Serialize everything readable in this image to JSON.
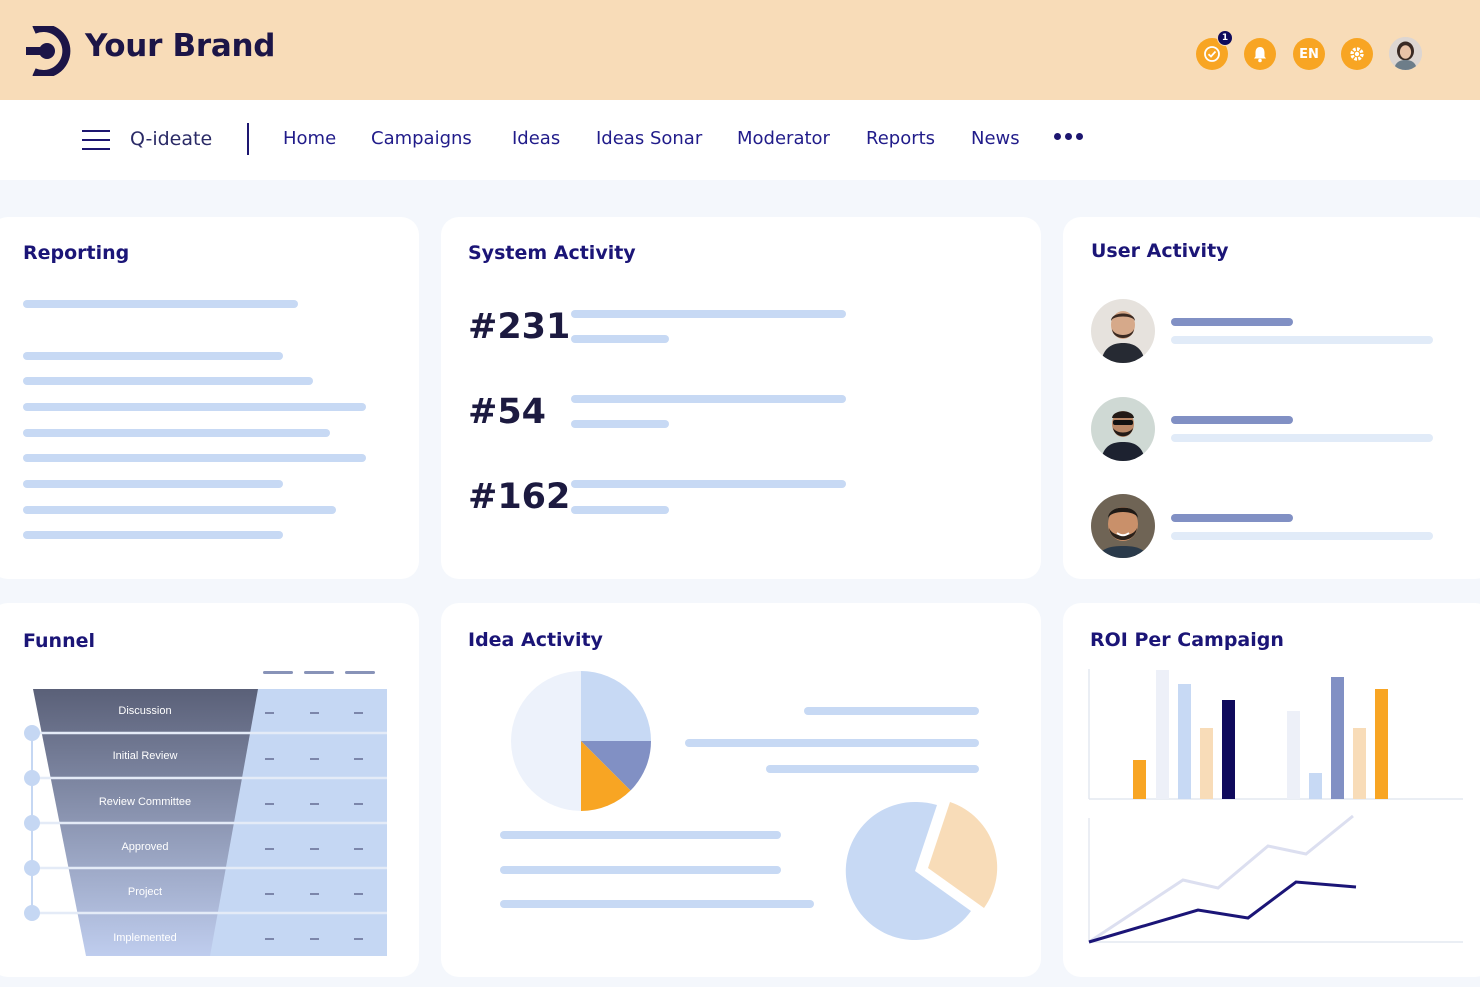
{
  "header": {
    "brand": "Your Brand",
    "icons": [
      {
        "name": "check-circle-icon",
        "badge": "1"
      },
      {
        "name": "bell-icon"
      },
      {
        "name": "language-icon",
        "label": "EN"
      },
      {
        "name": "gear-icon"
      }
    ],
    "accent_color": "#f8a523"
  },
  "nav": {
    "app_name": "Q-ideate",
    "items": [
      "Home",
      "Campaigns",
      "Ideas",
      "Ideas Sonar",
      "Moderator",
      "Reports",
      "News"
    ]
  },
  "reporting": {
    "title": "Reporting"
  },
  "system_activity": {
    "title": "System Activity",
    "items": [
      "#231",
      "#54",
      "#162"
    ]
  },
  "user_activity": {
    "title": "User Activity"
  },
  "funnel": {
    "title": "Funnel",
    "stages": [
      "Discussion",
      "Initial Review",
      "Review Committee",
      "Approved",
      "Project",
      "Implemented"
    ]
  },
  "idea_activity": {
    "title": "Idea Activity"
  },
  "roi": {
    "title": "ROI Per Campaign"
  }
}
